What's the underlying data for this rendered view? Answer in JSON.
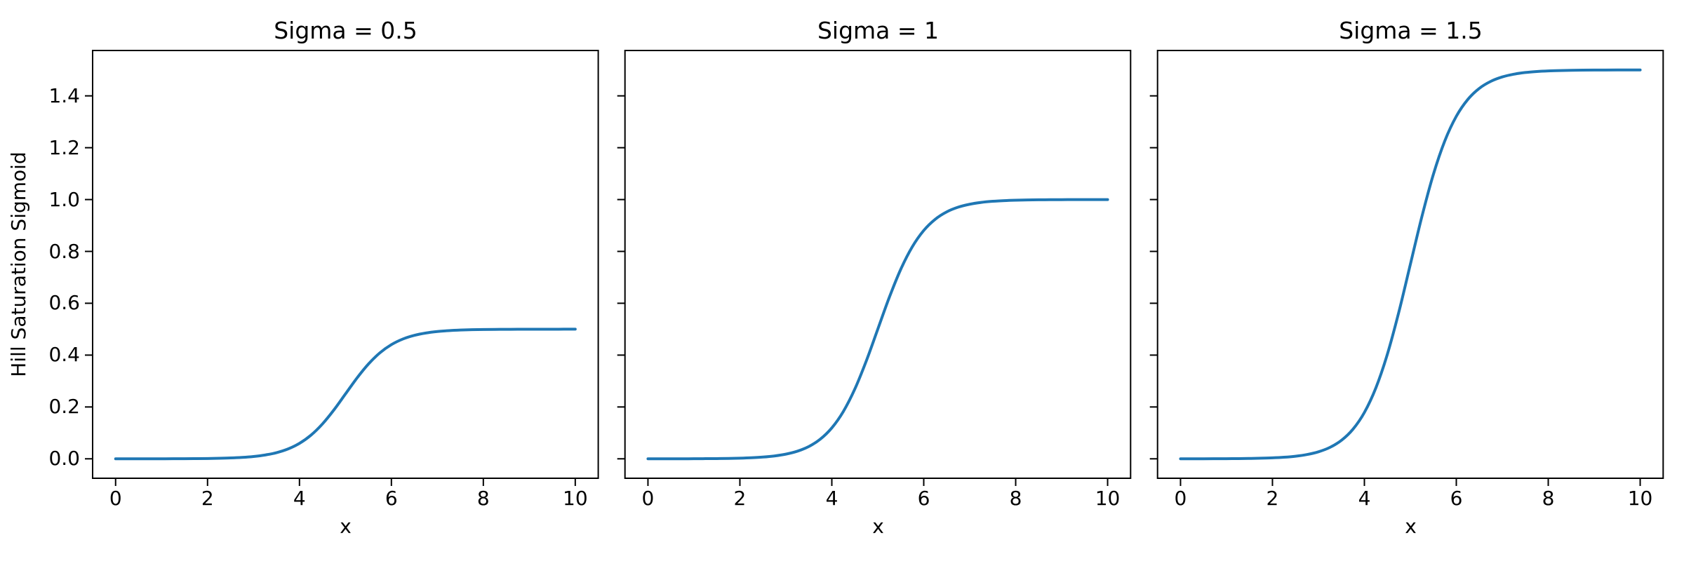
{
  "figure": {
    "background": "#ffffff",
    "text_color": "#000000"
  },
  "chart_data": {
    "type": "line",
    "subplot_layout": "1 row x 3 columns, shared y-axis",
    "line_color": "#1f77b4",
    "xlabel": "x",
    "ylabel": "Hill Saturation Sigmoid",
    "xlim": [
      -0.5,
      10.5
    ],
    "ylim": [
      -0.075,
      1.575
    ],
    "xticks": [
      0,
      2,
      4,
      6,
      8,
      10
    ],
    "xtick_labels": [
      "0",
      "2",
      "4",
      "6",
      "8",
      "10"
    ],
    "yticks": [
      0.0,
      0.2,
      0.4,
      0.6,
      0.8,
      1.0,
      1.2,
      1.4
    ],
    "ytick_labels": [
      "0.0",
      "0.2",
      "0.4",
      "0.6",
      "0.8",
      "1.0",
      "1.2",
      "1.4"
    ],
    "grid": false,
    "legend": "none",
    "x": [
      0,
      0.25,
      0.5,
      0.75,
      1,
      1.25,
      1.5,
      1.75,
      2,
      2.25,
      2.5,
      2.75,
      3,
      3.25,
      3.5,
      3.75,
      4,
      4.25,
      4.5,
      4.75,
      5,
      5.25,
      5.5,
      5.75,
      6,
      6.25,
      6.5,
      6.75,
      7,
      7.25,
      7.5,
      7.75,
      8,
      8.25,
      8.5,
      8.75,
      9,
      9.25,
      9.5,
      9.75,
      10
    ],
    "charts": [
      {
        "title": "Sigma = 0.5",
        "sigma": 0.5,
        "saturation_value": 0.5,
        "midpoint_x": 5,
        "values": [
          0.0,
          0.0,
          0.0001,
          0.0001,
          0.0002,
          0.0003,
          0.0005,
          0.0008,
          0.0012,
          0.002,
          0.0033,
          0.0055,
          0.009,
          0.0147,
          0.0237,
          0.0379,
          0.0596,
          0.0912,
          0.1345,
          0.1887,
          0.25,
          0.3113,
          0.3655,
          0.4088,
          0.4404,
          0.4621,
          0.4763,
          0.4853,
          0.491,
          0.4945,
          0.4967,
          0.498,
          0.4988,
          0.4992,
          0.4995,
          0.4997,
          0.4998,
          0.4999,
          0.4999,
          0.5,
          0.5
        ]
      },
      {
        "title": "Sigma = 1",
        "sigma": 1,
        "saturation_value": 1.0,
        "midpoint_x": 5,
        "values": [
          0.0,
          0.0001,
          0.0001,
          0.0002,
          0.0003,
          0.0006,
          0.0009,
          0.0015,
          0.0025,
          0.0041,
          0.0067,
          0.011,
          0.018,
          0.0293,
          0.0474,
          0.0759,
          0.1192,
          0.1824,
          0.2689,
          0.3775,
          0.5,
          0.6225,
          0.7311,
          0.8176,
          0.8808,
          0.9241,
          0.9526,
          0.9707,
          0.982,
          0.989,
          0.9933,
          0.9959,
          0.9975,
          0.9985,
          0.9991,
          0.9994,
          0.9997,
          0.9998,
          0.9999,
          0.9999,
          1.0
        ]
      },
      {
        "title": "Sigma = 1.5",
        "sigma": 1.5,
        "saturation_value": 1.5,
        "midpoint_x": 5,
        "values": [
          0.0001,
          0.0001,
          0.0002,
          0.0003,
          0.0005,
          0.0008,
          0.0014,
          0.0023,
          0.0037,
          0.0061,
          0.01,
          0.0165,
          0.027,
          0.044,
          0.0711,
          0.1138,
          0.1788,
          0.2736,
          0.4034,
          0.5663,
          0.75,
          0.9337,
          1.0966,
          1.2264,
          1.3212,
          1.3862,
          1.4289,
          1.456,
          1.473,
          1.4835,
          1.49,
          1.4939,
          1.4963,
          1.4977,
          1.4986,
          1.4992,
          1.4995,
          1.4997,
          1.4998,
          1.4999,
          1.4999
        ]
      }
    ]
  }
}
